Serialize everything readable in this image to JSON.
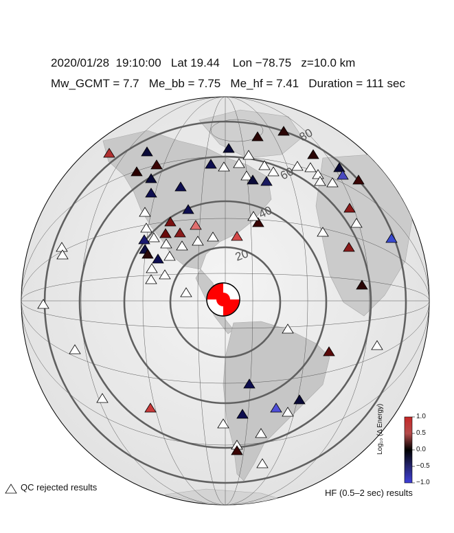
{
  "header": {
    "line1": "2020/01/28  19:10:00   Lat 19.44    Lon −78.75   z=10.0 km",
    "line2": "Mw_GCMT = 7.7   Me_bb = 7.75   Me_hf = 7.41   Duration = 111 sec"
  },
  "map": {
    "projection": "azimuthal",
    "center": {
      "lat": 19.44,
      "lon": -78.75
    },
    "distance_ring_labels": [
      "20",
      "40",
      "60",
      "80"
    ]
  },
  "colorbar": {
    "title": "Log₁₀ (Δ Energy)",
    "ticks": [
      "1.0",
      "0.5",
      "0.0",
      "−0.5",
      "−1.0"
    ],
    "colors": {
      "high": "#c62828",
      "mid": "#000000",
      "low": "#3f3fd9"
    }
  },
  "legend": {
    "qc_label": "QC rejected results",
    "hf_label": "HF (0.5–2 sec) results"
  }
}
